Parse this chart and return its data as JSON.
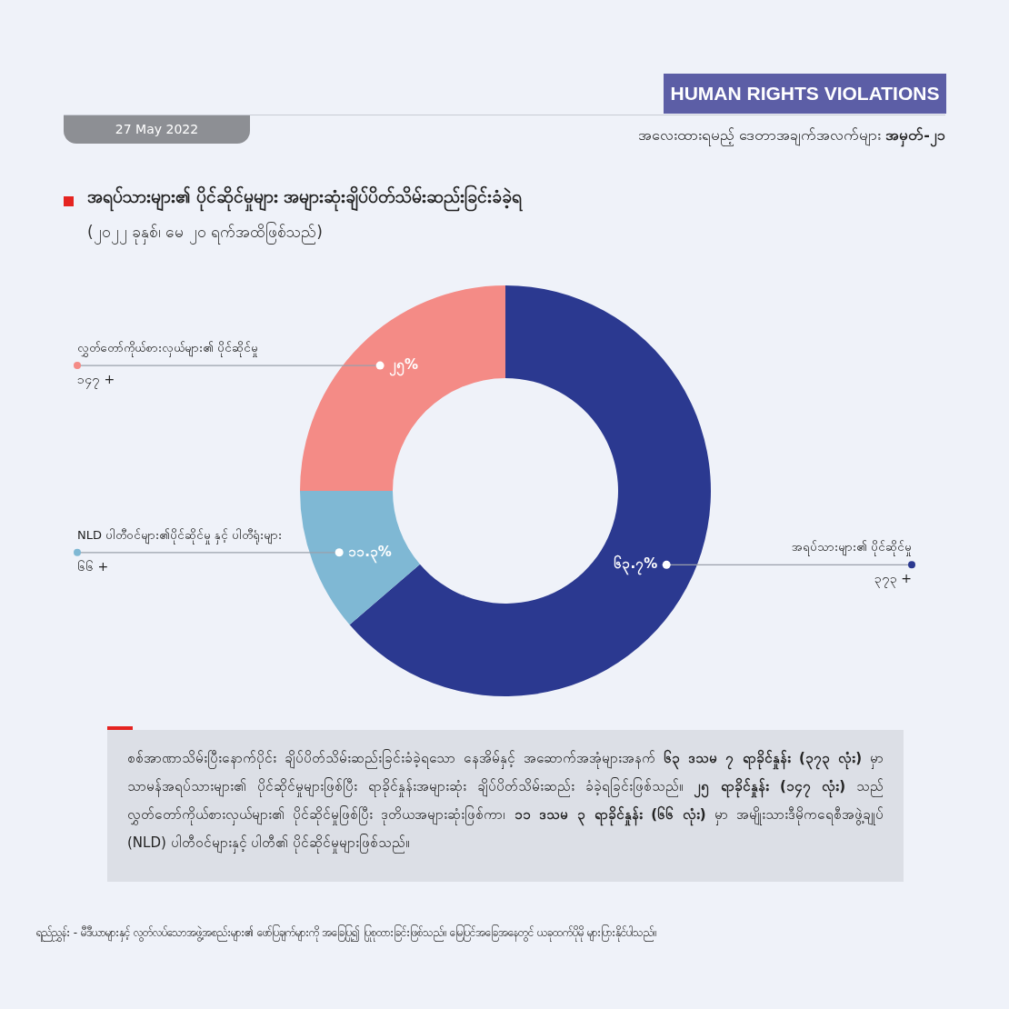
{
  "chart_data": {
    "type": "donut",
    "title": "အရပ်သားများ၏ ပိုင်ဆိုင်မှုများ အများဆုံးချိပ်ပိတ်သိမ်းဆည်းခြင်းခံခဲ့ရ",
    "subtitle": "(၂၀၂၂ ခုနှစ်၊ မေ ၂၀ ရက်အထိဖြစ်သည်)",
    "categories": [
      "အရပ်သားများ၏ ပိုင်ဆိုင်မှု",
      "NLD ပါတီဝင်များ၏ပိုင်ဆိုင်မှု နှင့် ပါတီရုံးများ",
      "လွှတ်တော်ကိုယ်စားလှယ်များ၏ ပိုင်ဆိုင်မှု"
    ],
    "values": [
      63.7,
      11.3,
      25
    ],
    "colors": [
      "#2b3990",
      "#7fb8d4",
      "#f48b86"
    ],
    "value_labels": [
      "၆၃.၇%",
      "၁၁.၃%",
      "၂၅%"
    ],
    "annotations": [
      "၃၇၃ +",
      "၆၆ +",
      "၁၄၇ +",
      "HUMAN RIGHTS VIOLATIONS",
      "အလေးထားရမည့် ဒေတာအချက်အလက်များ **အမှတ်-၂၁**",
      "27 May 2022",
      "စစ်အာဏာသိမ်းပြီးနောက်ပိုင်း ချိပ်ပိတ်သိမ်းဆည်းခြင်းခံခဲ့ရသော နေအိမ်နှင့် အဆောက်အအုံများအနက် **၆၃ ဒသမ ၇ ရာခိုင်နှုန်း (၃၇၃ လုံး)** မှာ သာမန်အရပ်သားများ၏ ပိုင်ဆိုင်မှုများဖြစ်ပြီး ရာခိုင်နှုန်းအများဆုံး ချိပ်ပိတ်သိမ်းဆည်း ခံခဲ့ရခြင်းဖြစ်သည်။ **၂၅ ရာခိုင်နှုန်း (၁၄၇ လုံး)** သည် လွှတ်တော်ကိုယ်စားလှယ်များ၏ ပိုင်ဆိုင်မှုဖြစ်ပြီး ဒုတိယအများဆုံးဖြစ်ကာ၊ **၁၁ ဒသမ ၃ ရာခိုင်နှုန်း (၆၆ လုံး)** မှာ အမျိုးသားဒီမိုကရေစီအဖွဲ့ချုပ် (NLD) ပါတီဝင်များနှင့် ပါတီ၏ ပိုင်ဆိုင်မှုများဖြစ်သည်။",
      "ရည်ညွှန်း - မီဒီယာများနှင့် လွတ်လပ်သောအဖွဲ့အစည်းများ၏ ဖော်ပြချက်များကို အခြေပြု၍ ပြုစုထားခြင်းဖြစ်သည်။ မြေပြင်အခြေအနေတွင် ယခုထက်ပိုမို များပြားနိုင်ပါသည်။"
    ]
  }
}
